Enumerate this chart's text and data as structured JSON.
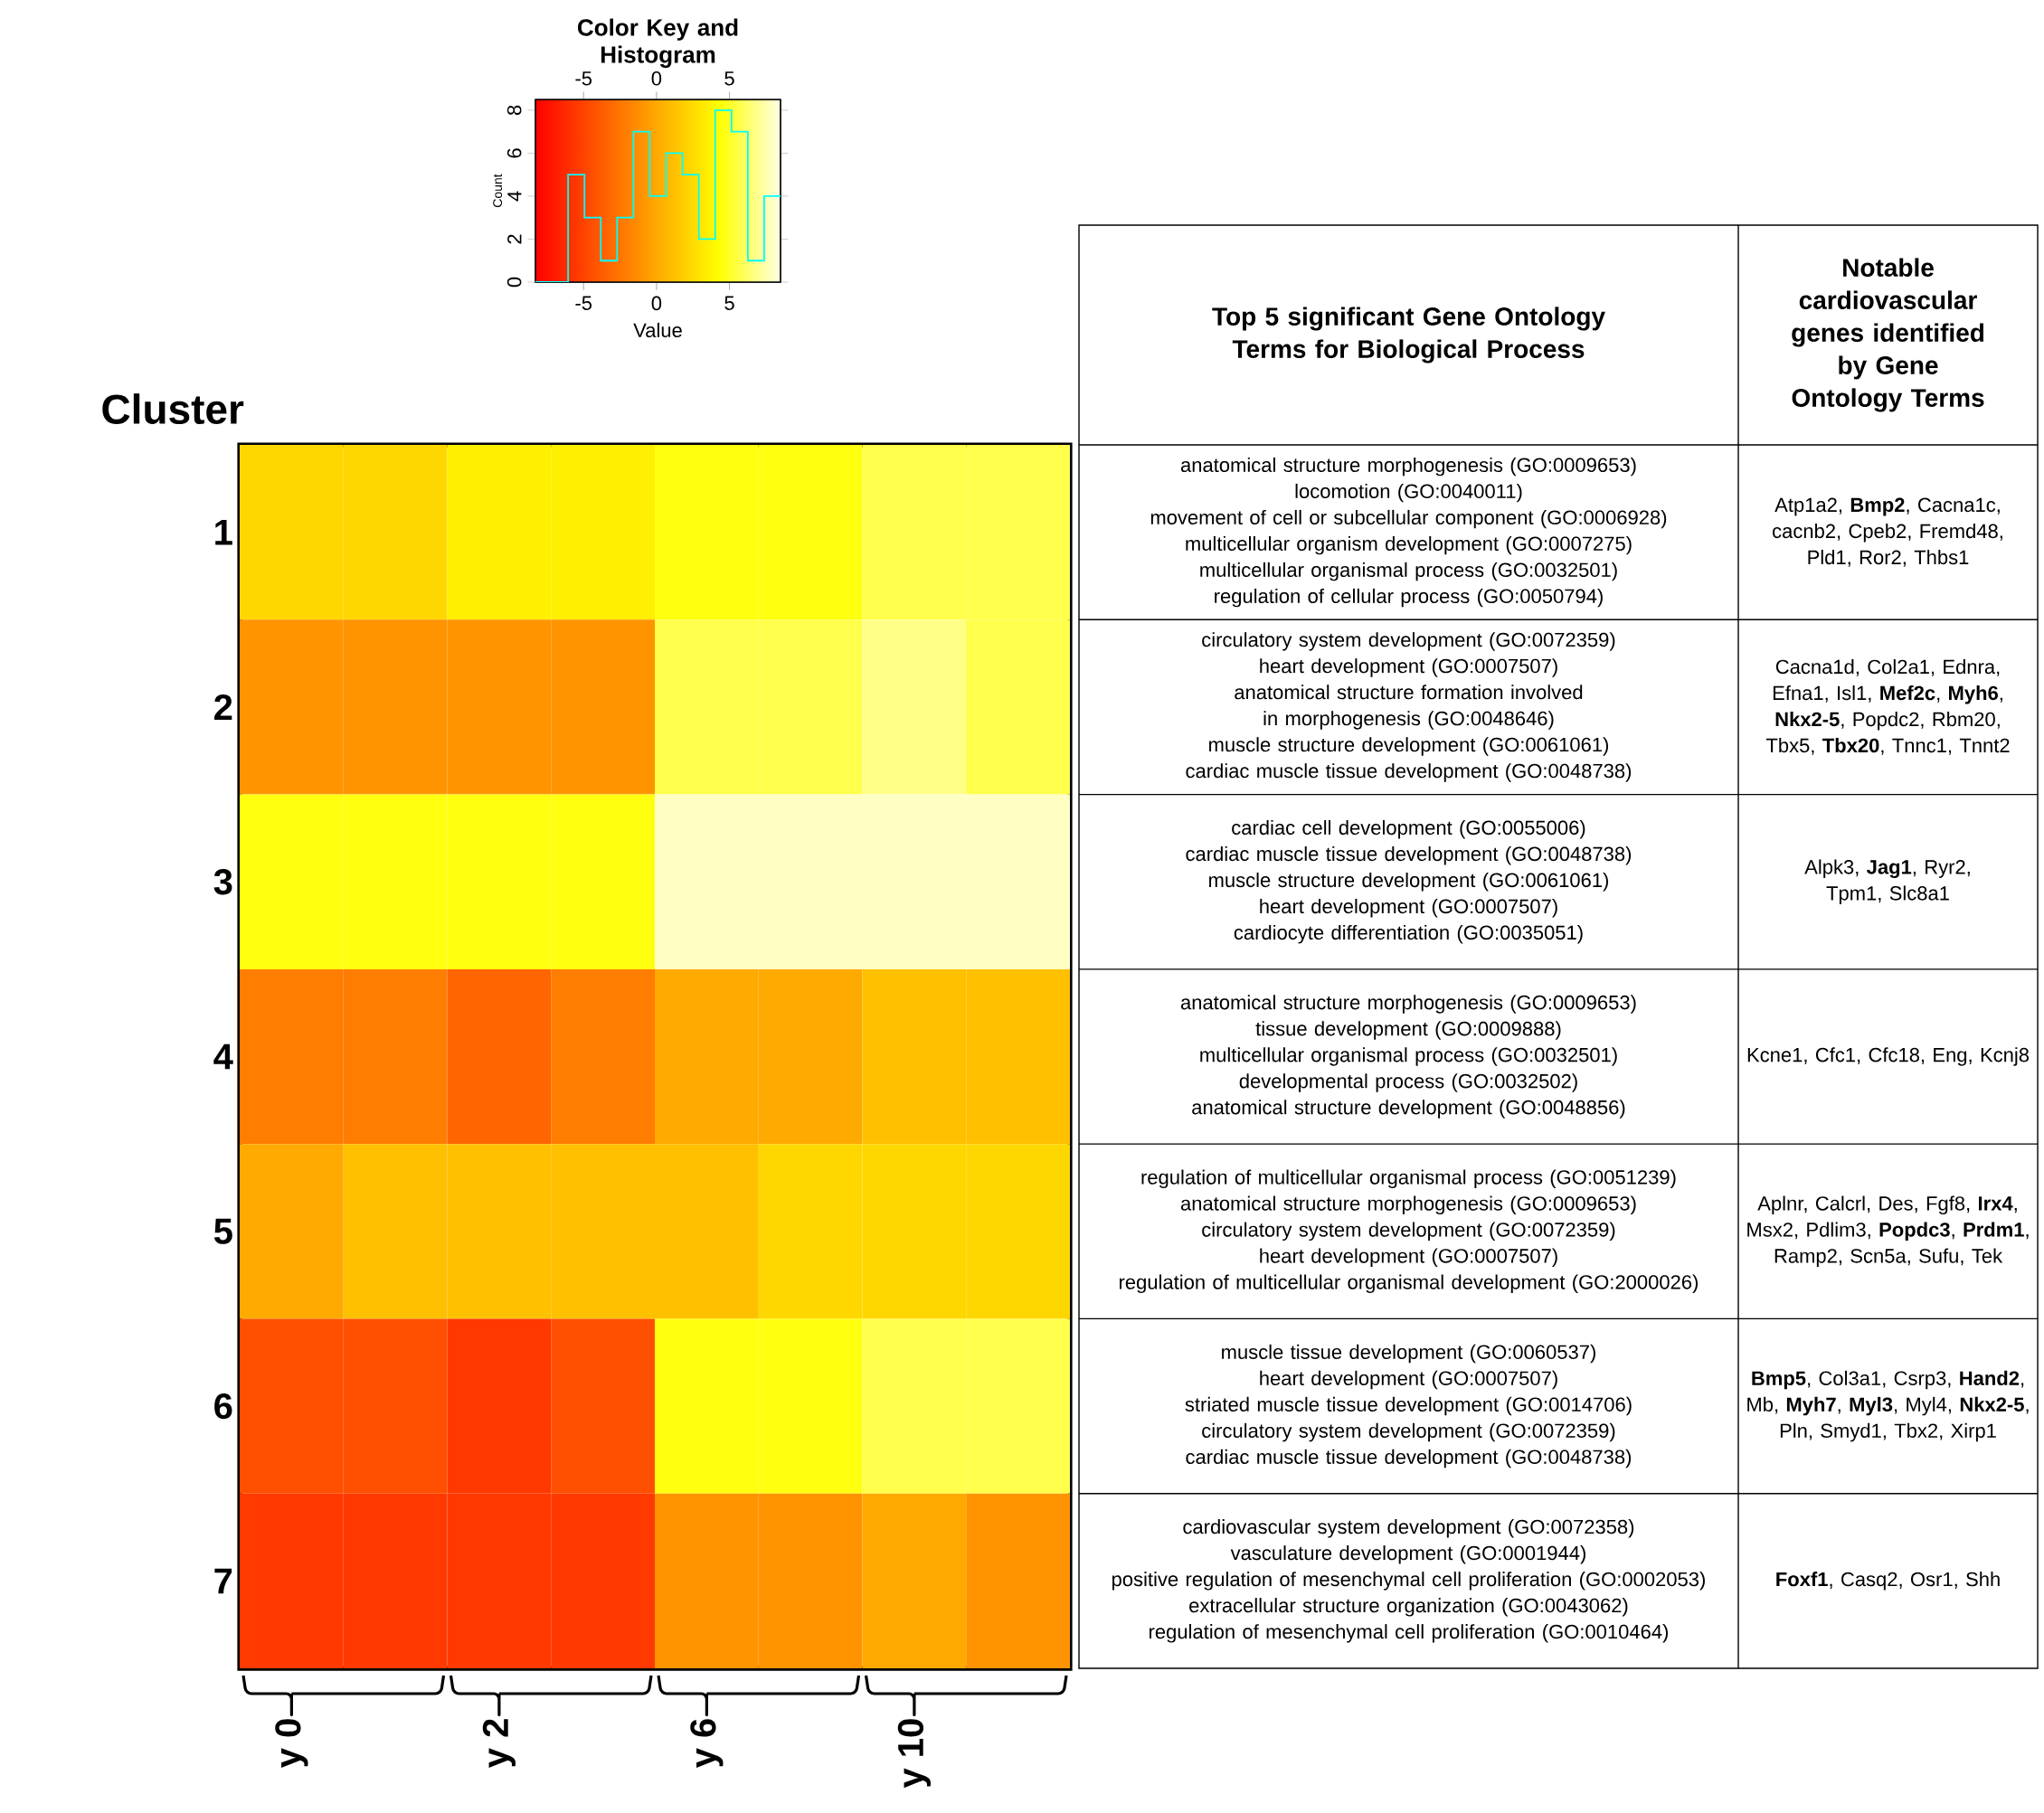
{
  "chart_data": [
    {
      "type": "histogram",
      "title": "Color Key and Histogram",
      "xlabel": "Value",
      "ylabel": "Count",
      "bins": [
        -8.3,
        -7.18,
        -6.06,
        -4.94,
        -3.82,
        -2.7,
        -1.58,
        -0.46,
        0.66,
        1.78,
        2.9,
        4.02,
        5.14,
        6.26,
        7.38,
        8.5
      ],
      "values": [
        0,
        0,
        5,
        3,
        1,
        3,
        7,
        4,
        6,
        5,
        2,
        8,
        7,
        1,
        4
      ],
      "color": "#00ffff",
      "xlim": [
        -8.3,
        8.5
      ],
      "xticks": [
        -5,
        0,
        5
      ],
      "ylim": [
        0,
        8.5
      ],
      "yticks": [
        0,
        2,
        4,
        6,
        8
      ]
    },
    {
      "type": "heatmap",
      "ylabel": "Cluster",
      "categories": [
        "y 0",
        null,
        "y 2",
        null,
        "y 6",
        null,
        "y 10",
        null
      ],
      "y_categories": [
        "1",
        "2",
        "3",
        "4",
        "5",
        "6",
        "7"
      ],
      "cells": [
        [
          2.3,
          2.3,
          3.5,
          3.5,
          4.6,
          4.6,
          5.7,
          5.7
        ],
        [
          -1.0,
          -1.0,
          -1.0,
          -1.0,
          5.7,
          5.7,
          6.8,
          5.7
        ],
        [
          4.6,
          4.6,
          4.6,
          4.6,
          7.9,
          7.9,
          7.9,
          7.9
        ],
        [
          -2.1,
          -2.1,
          -3.3,
          -2.1,
          0.1,
          0.1,
          1.2,
          1.2
        ],
        [
          0.1,
          1.2,
          1.2,
          1.2,
          1.2,
          2.3,
          2.3,
          2.3
        ],
        [
          -4.4,
          -4.4,
          -5.5,
          -4.4,
          4.6,
          4.6,
          5.7,
          5.7
        ],
        [
          -5.5,
          -5.5,
          -5.5,
          -5.5,
          -1.0,
          -1.0,
          0.1,
          -1.0
        ]
      ],
      "clim": [
        -8.3,
        8.5
      ],
      "cticks": [
        -5,
        0,
        5
      ]
    },
    {
      "type": "other",
      "categories": [
        "Top 5 significant Gene Ontology Terms for Biological Process",
        "Notable cardiovascular genes identified by Gene Ontology Terms"
      ],
      "cell_labels": [
        [
          "anatomical structure morphogenesis (GO:0009653)",
          "locomotion (GO:0040011)",
          "movement of cell or subcellular component (GO:0006928)",
          "multicellular organism development (GO:0007275)",
          "multicellular organismal process (GO:0032501)",
          "regulation of cellular process (GO:0050794)",
          "Atp1a2, **Bmp2**, Cacna1c, cacnb2, Cpeb2, Fremd48, Pld1, Ror2, Thbs1"
        ],
        [
          "circulatory system development (GO:0072359)",
          "heart development (GO:0007507)",
          "anatomical structure formation involved in morphogenesis (GO:0048646)",
          "muscle structure development (GO:0061061)",
          "cardiac muscle tissue development (GO:0048738)",
          "Cacna1d, Col2a1, Ednra, Efna1, Isl1, **Mef2c**, **Myh6**, **Nkx2-5**, Popdc2, Rbm20, Tbx5, **Tbx20**, Tnnc1, Tnnt2"
        ],
        [
          "cardiac cell development (GO:0055006)",
          "cardiac muscle tissue development (GO:0048738)",
          "muscle structure development (GO:0061061)",
          "heart development (GO:0007507)",
          "cardiocyte differentiation (GO:0035051)",
          "Alpk3, **Jag1**, Ryr2, Tpm1, Slc8a1"
        ],
        [
          "anatomical structure morphogenesis (GO:0009653)",
          "tissue development (GO:0009888)",
          "multicellular organismal process (GO:0032501)",
          "developmental process (GO:0032502)",
          "anatomical structure development (GO:0048856)",
          "Kcne1, Cfc1, Cfc18, Eng, Kcnj8"
        ],
        [
          "regulation of multicellular organismal process (GO:0051239)",
          "anatomical structure morphogenesis (GO:0009653)",
          "circulatory system development (GO:0072359)",
          "heart development (GO:0007507)",
          "regulation of multicellular organismal development (GO:2000026)",
          "Aplnr, Calcrl, Des, Fgf8, **Irx4**, Msx2, Pdlim3, **Popdc3**, **Prdm1**, Ramp2, Scn5a, Sufu, Tek"
        ],
        [
          "muscle tissue development (GO:0060537)",
          "heart development (GO:0007507)",
          "striated muscle tissue development (GO:0014706)",
          "circulatory system development (GO:0072359)",
          "cardiac muscle tissue development (GO:0048738)",
          "**Bmp5**, Col3a1, Csrp3, **Hand2**, Mb, **Myh7**, **Myl3**, Myl4, **Nkx2-5**, Pln, Smyd1, Tbx2, Xirp1"
        ],
        [
          "cardiovascular system development (GO:0072358)",
          "vasculature development (GO:0001944)",
          "positive regulation of mesenchymal cell proliferation (GO:0002053)",
          "extracellular structure organization (GO:0043062)",
          "regulation of mesenchymal cell proliferation (GO:0010464)",
          "**Foxf1**, Casq2, Osr1, Shh"
        ]
      ]
    }
  ]
}
